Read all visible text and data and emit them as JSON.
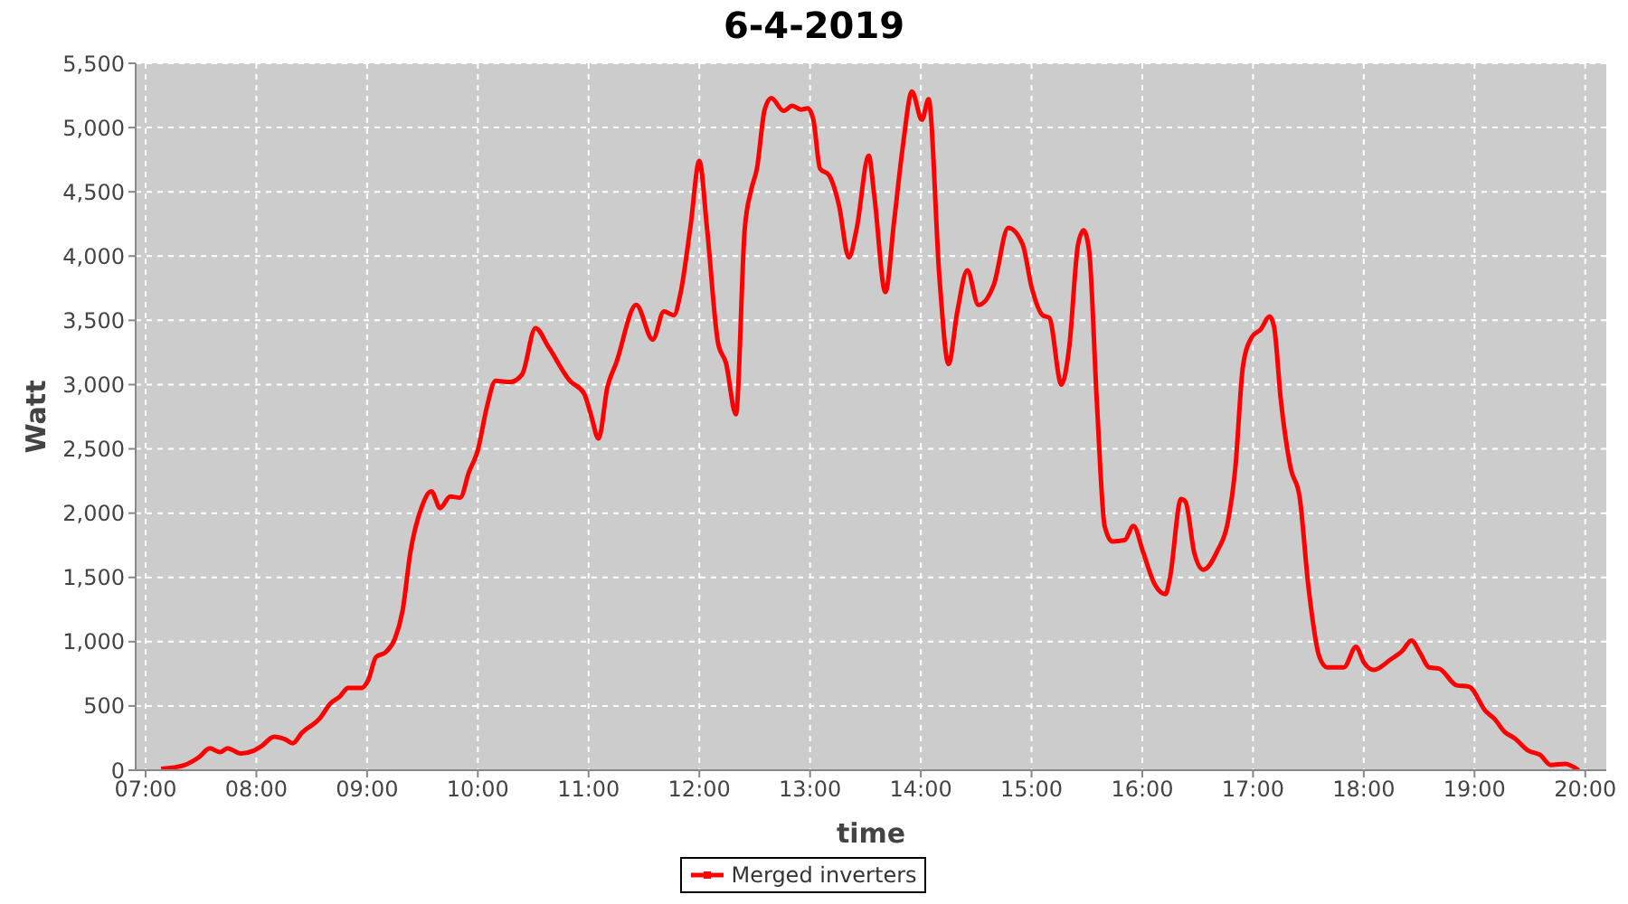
{
  "chart_data": {
    "type": "line",
    "title": "6-4-2019",
    "xlabel": "time",
    "ylabel": "Watt",
    "xlim": [
      6.91,
      20.19
    ],
    "xticks": [
      {
        "value": 7,
        "label": "07:00"
      },
      {
        "value": 8,
        "label": "08:00"
      },
      {
        "value": 9,
        "label": "09:00"
      },
      {
        "value": 10,
        "label": "10:00"
      },
      {
        "value": 11,
        "label": "11:00"
      },
      {
        "value": 12,
        "label": "12:00"
      },
      {
        "value": 13,
        "label": "13:00"
      },
      {
        "value": 14,
        "label": "14:00"
      },
      {
        "value": 15,
        "label": "15:00"
      },
      {
        "value": 16,
        "label": "16:00"
      },
      {
        "value": 17,
        "label": "17:00"
      },
      {
        "value": 18,
        "label": "18:00"
      },
      {
        "value": 19,
        "label": "19:00"
      },
      {
        "value": 20,
        "label": "20:00"
      }
    ],
    "ylim": [
      0,
      5500
    ],
    "yticks": [
      0,
      500,
      {
        "value": 1000,
        "label": "1,000"
      },
      {
        "value": 1500,
        "label": "1,500"
      },
      {
        "value": 2000,
        "label": "2,000"
      },
      {
        "value": 2500,
        "label": "2,500"
      },
      {
        "value": 3000,
        "label": "3,000"
      },
      {
        "value": 3500,
        "label": "3,500"
      },
      {
        "value": 4000,
        "label": "4,000"
      },
      {
        "value": 4500,
        "label": "4,500"
      },
      {
        "value": 5000,
        "label": "5,000"
      },
      {
        "value": 5500,
        "label": "5,500"
      }
    ],
    "grid": true,
    "legend": "bottom",
    "x": [
      7.14,
      7.35,
      7.48,
      7.58,
      7.67,
      7.74,
      7.86,
      7.97,
      8.05,
      8.16,
      8.26,
      8.33,
      8.41,
      8.57,
      8.67,
      8.75,
      8.83,
      8.95,
      9.01,
      9.08,
      9.17,
      9.25,
      9.32,
      9.39,
      9.49,
      9.58,
      9.66,
      9.75,
      9.84,
      9.92,
      10.0,
      10.08,
      10.16,
      10.29,
      10.4,
      10.52,
      10.64,
      10.83,
      10.96,
      11.02,
      11.09,
      11.17,
      11.25,
      11.43,
      11.58,
      11.68,
      11.77,
      11.83,
      11.92,
      12.0,
      12.07,
      12.17,
      12.24,
      12.33,
      12.41,
      12.47,
      12.52,
      12.59,
      12.65,
      12.76,
      12.84,
      12.92,
      12.98,
      13.03,
      13.09,
      13.17,
      13.26,
      13.35,
      13.42,
      13.53,
      13.58,
      13.68,
      13.76,
      13.84,
      13.92,
      14.01,
      14.07,
      14.17,
      14.25,
      14.33,
      14.42,
      14.52,
      14.66,
      14.79,
      14.92,
      15.0,
      15.1,
      15.16,
      15.27,
      15.34,
      15.42,
      15.47,
      15.52,
      15.59,
      15.66,
      15.73,
      15.84,
      15.92,
      16.01,
      16.11,
      16.21,
      16.25,
      16.35,
      16.39,
      16.47,
      16.55,
      16.68,
      16.77,
      16.84,
      16.91,
      16.99,
      17.07,
      17.15,
      17.19,
      17.25,
      17.34,
      17.42,
      17.5,
      17.6,
      17.67,
      17.82,
      17.93,
      18.0,
      18.09,
      18.24,
      18.35,
      18.43,
      18.51,
      18.59,
      18.68,
      18.84,
      18.95,
      19.1,
      19.18,
      19.27,
      19.36,
      19.49,
      19.59,
      19.69,
      19.82,
      19.94
    ],
    "series": [
      {
        "name": "Merged inverters",
        "color": "#ff0000",
        "values": [
          10,
          40,
          100,
          170,
          140,
          170,
          130,
          150,
          190,
          260,
          240,
          210,
          290,
          400,
          520,
          570,
          640,
          640,
          700,
          880,
          920,
          1020,
          1240,
          1690,
          2040,
          2170,
          2040,
          2130,
          2120,
          2320,
          2490,
          2820,
          3030,
          3020,
          3080,
          3440,
          3290,
          3030,
          2930,
          2770,
          2580,
          2980,
          3170,
          3620,
          3350,
          3570,
          3540,
          3710,
          4230,
          4740,
          4210,
          3320,
          3170,
          2770,
          4210,
          4520,
          4680,
          5140,
          5230,
          5130,
          5170,
          5140,
          5150,
          5060,
          4680,
          4630,
          4400,
          3990,
          4210,
          4780,
          4470,
          3720,
          4280,
          4870,
          5280,
          5060,
          5220,
          3810,
          3160,
          3570,
          3890,
          3620,
          3780,
          4220,
          4090,
          3760,
          3540,
          3520,
          3000,
          3290,
          4090,
          4200,
          4040,
          2860,
          1900,
          1780,
          1790,
          1900,
          1690,
          1450,
          1370,
          1500,
          2110,
          2090,
          1690,
          1560,
          1710,
          1920,
          2350,
          3150,
          3370,
          3430,
          3530,
          3450,
          2890,
          2350,
          2130,
          1430,
          880,
          800,
          800,
          960,
          840,
          780,
          860,
          930,
          1010,
          910,
          800,
          790,
          660,
          650,
          460,
          400,
          300,
          250,
          150,
          120,
          40,
          50,
          0
        ]
      }
    ]
  }
}
